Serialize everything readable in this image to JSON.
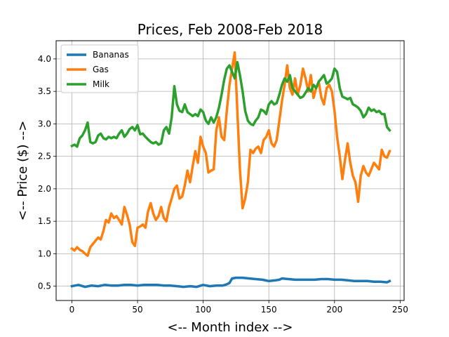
{
  "chart_data": {
    "type": "line",
    "title": "Prices, Feb 2008-Feb 2018",
    "xlabel": "<-- Month index -->",
    "ylabel": "<-- Price ($) -->",
    "xlim": [
      -12,
      253
    ],
    "ylim": [
      0.28,
      4.28
    ],
    "xticks": [
      0,
      50,
      100,
      150,
      200,
      250
    ],
    "yticks": [
      0.5,
      1.0,
      1.5,
      2.0,
      2.5,
      3.0,
      3.5,
      4.0
    ],
    "xtick_labels": [
      "0",
      "50",
      "100",
      "150",
      "200",
      "250"
    ],
    "ytick_labels": [
      "0.5",
      "1.0",
      "1.5",
      "2.0",
      "2.5",
      "3.0",
      "3.5",
      "4.0"
    ],
    "grid": true,
    "legend_position": "top-left",
    "series": [
      {
        "name": "Bananas",
        "color": "#1f77b4",
        "x": [
          0,
          5,
          10,
          15,
          20,
          25,
          30,
          35,
          40,
          45,
          50,
          55,
          60,
          65,
          70,
          75,
          80,
          85,
          90,
          95,
          100,
          105,
          110,
          115,
          118,
          120,
          122,
          125,
          130,
          135,
          140,
          145,
          150,
          155,
          158,
          160,
          165,
          170,
          175,
          180,
          185,
          190,
          195,
          200,
          205,
          210,
          215,
          220,
          225,
          230,
          235,
          240,
          242
        ],
        "y": [
          0.5,
          0.52,
          0.49,
          0.51,
          0.5,
          0.52,
          0.51,
          0.51,
          0.52,
          0.52,
          0.51,
          0.52,
          0.52,
          0.52,
          0.51,
          0.51,
          0.5,
          0.49,
          0.5,
          0.49,
          0.52,
          0.5,
          0.51,
          0.51,
          0.53,
          0.55,
          0.62,
          0.63,
          0.63,
          0.62,
          0.61,
          0.6,
          0.58,
          0.59,
          0.6,
          0.62,
          0.61,
          0.6,
          0.6,
          0.6,
          0.6,
          0.61,
          0.61,
          0.6,
          0.6,
          0.59,
          0.58,
          0.58,
          0.58,
          0.57,
          0.57,
          0.56,
          0.58
        ]
      },
      {
        "name": "Gas",
        "color": "#ff7f0e",
        "x": [
          0,
          2,
          4,
          6,
          8,
          10,
          12,
          14,
          16,
          18,
          20,
          22,
          24,
          26,
          28,
          30,
          32,
          34,
          36,
          38,
          40,
          42,
          44,
          46,
          48,
          50,
          52,
          54,
          56,
          58,
          60,
          62,
          64,
          66,
          68,
          70,
          72,
          74,
          76,
          78,
          80,
          82,
          84,
          86,
          88,
          90,
          92,
          94,
          96,
          98,
          100,
          102,
          104,
          106,
          108,
          110,
          112,
          114,
          116,
          118,
          120,
          122,
          124,
          126,
          128,
          130,
          132,
          134,
          136,
          138,
          140,
          142,
          144,
          146,
          148,
          150,
          152,
          154,
          156,
          158,
          160,
          162,
          164,
          166,
          168,
          170,
          172,
          174,
          176,
          178,
          180,
          182,
          184,
          186,
          188,
          190,
          192,
          194,
          196,
          198,
          200,
          202,
          204,
          206,
          208,
          210,
          212,
          214,
          216,
          218,
          220,
          222,
          224,
          226,
          228,
          230,
          232,
          234,
          236,
          238,
          240,
          242
        ],
        "y": [
          1.08,
          1.05,
          1.1,
          1.06,
          1.04,
          1.0,
          0.97,
          1.1,
          1.15,
          1.2,
          1.25,
          1.22,
          1.35,
          1.52,
          1.48,
          1.62,
          1.55,
          1.58,
          1.52,
          1.45,
          1.72,
          1.6,
          1.45,
          1.18,
          1.12,
          1.4,
          1.42,
          1.45,
          1.4,
          1.65,
          1.78,
          1.62,
          1.52,
          1.58,
          1.72,
          1.55,
          1.5,
          1.72,
          1.85,
          2.0,
          2.05,
          1.85,
          1.88,
          2.05,
          2.28,
          2.1,
          2.35,
          2.58,
          2.4,
          2.8,
          2.65,
          2.55,
          2.25,
          2.28,
          2.3,
          2.9,
          3.1,
          2.8,
          2.75,
          3.2,
          3.6,
          3.85,
          4.1,
          3.2,
          2.3,
          1.7,
          1.85,
          2.1,
          2.6,
          2.55,
          2.62,
          2.65,
          2.55,
          2.75,
          2.8,
          2.9,
          2.7,
          2.65,
          2.75,
          3.05,
          3.35,
          3.6,
          3.9,
          3.55,
          3.45,
          3.7,
          3.45,
          3.6,
          3.85,
          3.7,
          3.5,
          3.75,
          3.4,
          3.55,
          3.65,
          3.4,
          3.3,
          3.55,
          3.6,
          3.5,
          3.2,
          2.8,
          2.5,
          2.15,
          2.45,
          2.7,
          2.4,
          2.2,
          2.1,
          1.8,
          2.2,
          2.35,
          2.25,
          2.2,
          2.3,
          2.4,
          2.35,
          2.3,
          2.6,
          2.5,
          2.48,
          2.58
        ]
      },
      {
        "name": "Milk",
        "color": "#2ca02c",
        "x": [
          0,
          2,
          4,
          6,
          8,
          10,
          12,
          14,
          16,
          18,
          20,
          22,
          24,
          26,
          28,
          30,
          32,
          34,
          36,
          38,
          40,
          42,
          44,
          46,
          48,
          50,
          52,
          54,
          56,
          58,
          60,
          62,
          64,
          66,
          68,
          70,
          72,
          74,
          76,
          78,
          80,
          82,
          84,
          86,
          88,
          90,
          92,
          94,
          96,
          98,
          100,
          102,
          104,
          106,
          108,
          110,
          112,
          114,
          116,
          118,
          120,
          122,
          124,
          126,
          128,
          130,
          132,
          134,
          136,
          138,
          140,
          142,
          144,
          146,
          148,
          150,
          152,
          154,
          156,
          158,
          160,
          162,
          164,
          166,
          168,
          170,
          172,
          174,
          176,
          178,
          180,
          182,
          184,
          186,
          188,
          190,
          192,
          194,
          196,
          198,
          200,
          202,
          204,
          206,
          208,
          210,
          212,
          214,
          216,
          218,
          220,
          222,
          224,
          226,
          228,
          230,
          232,
          234,
          236,
          238,
          240,
          242
        ],
        "y": [
          2.66,
          2.68,
          2.65,
          2.78,
          2.82,
          2.9,
          3.02,
          2.72,
          2.7,
          2.72,
          2.82,
          2.85,
          2.78,
          2.76,
          2.8,
          2.78,
          2.8,
          2.78,
          2.85,
          2.9,
          2.8,
          2.85,
          2.92,
          2.95,
          2.9,
          2.98,
          2.84,
          2.85,
          2.8,
          2.76,
          2.72,
          2.7,
          2.72,
          2.68,
          2.7,
          2.9,
          2.95,
          2.85,
          3.1,
          3.58,
          3.3,
          3.2,
          3.18,
          3.3,
          3.18,
          3.15,
          3.12,
          3.15,
          3.12,
          3.22,
          3.18,
          3.05,
          3.0,
          3.1,
          3.02,
          3.1,
          3.25,
          3.45,
          3.68,
          3.85,
          3.9,
          3.8,
          3.7,
          3.95,
          3.75,
          3.5,
          3.2,
          3.05,
          3.0,
          2.98,
          3.05,
          3.1,
          3.22,
          3.2,
          3.15,
          3.3,
          3.35,
          3.3,
          3.32,
          3.45,
          3.6,
          3.7,
          3.65,
          3.75,
          3.55,
          3.5,
          3.45,
          3.4,
          3.42,
          3.48,
          3.55,
          3.5,
          3.6,
          3.55,
          3.65,
          3.7,
          3.75,
          3.62,
          3.65,
          3.7,
          3.85,
          3.8,
          3.55,
          3.42,
          3.4,
          3.38,
          3.4,
          3.3,
          3.28,
          3.25,
          3.2,
          3.1,
          3.15,
          3.25,
          3.2,
          3.22,
          3.18,
          3.2,
          3.15,
          3.15,
          2.95,
          2.9
        ]
      }
    ]
  }
}
